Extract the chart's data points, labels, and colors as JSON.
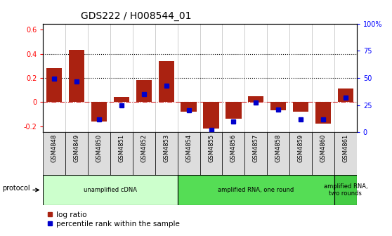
{
  "title": "GDS222 / H008544_01",
  "samples": [
    "GSM4848",
    "GSM4849",
    "GSM4850",
    "GSM4851",
    "GSM4852",
    "GSM4853",
    "GSM4854",
    "GSM4855",
    "GSM4856",
    "GSM4857",
    "GSM4858",
    "GSM4859",
    "GSM4860",
    "GSM4861"
  ],
  "log_ratio": [
    0.28,
    0.43,
    -0.16,
    0.04,
    0.18,
    0.34,
    -0.08,
    -0.22,
    -0.14,
    0.05,
    -0.07,
    -0.08,
    -0.18,
    0.11
  ],
  "percentile_rank": [
    49,
    47,
    12,
    25,
    35,
    43,
    20,
    2,
    10,
    27,
    21,
    12,
    12,
    32
  ],
  "bar_color": "#AA2211",
  "dot_color": "#0000CC",
  "protocol_groups": [
    {
      "label": "unamplified cDNA",
      "start": 0,
      "end": 5,
      "color": "#CCFFCC"
    },
    {
      "label": "amplified RNA, one round",
      "start": 6,
      "end": 12,
      "color": "#55DD55"
    },
    {
      "label": "amplified RNA,\ntwo rounds",
      "start": 13,
      "end": 13,
      "color": "#44CC44"
    }
  ],
  "ylim_left": [
    -0.25,
    0.65
  ],
  "ylim_right": [
    0,
    100
  ],
  "yticks_left": [
    -0.2,
    0.0,
    0.2,
    0.4,
    0.6
  ],
  "ytick_labels_left": [
    "-0.2",
    "0",
    "0.2",
    "0.4",
    "0.6"
  ],
  "yticks_right": [
    0,
    25,
    50,
    75,
    100
  ],
  "ytick_labels_right": [
    "0",
    "25",
    "50",
    "75",
    "100%"
  ],
  "hlines": [
    0.2,
    0.4
  ],
  "bar_width": 0.7,
  "background_color": "#FFFFFF",
  "zero_line_color": "#CC2222",
  "xtick_bg": "#DDDDDD"
}
